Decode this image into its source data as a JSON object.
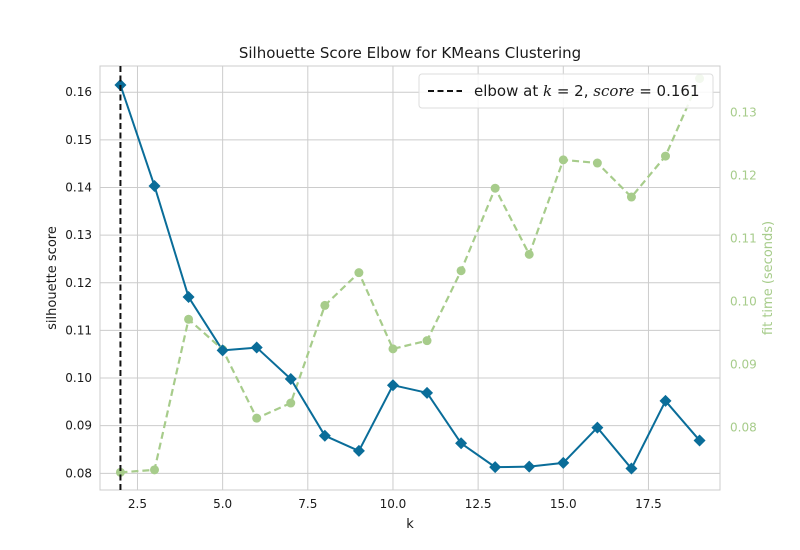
{
  "chart_data": {
    "type": "line",
    "title": "Silhouette Score Elbow for KMeans Clustering",
    "xlabel": "k",
    "ylabel": "silhouette score",
    "y2label": "fit time (seconds)",
    "xlim": [
      1.4,
      19.6
    ],
    "ylim": [
      0.0765,
      0.1655
    ],
    "y2lim": [
      0.0701,
      0.1374
    ],
    "xticks": [
      2.5,
      5.0,
      7.5,
      10.0,
      12.5,
      15.0,
      17.5
    ],
    "xtick_labels": [
      "2.5",
      "5.0",
      "7.5",
      "10.0",
      "12.5",
      "15.0",
      "17.5"
    ],
    "yticks": [
      0.08,
      0.09,
      0.1,
      0.11,
      0.12,
      0.13,
      0.14,
      0.15,
      0.16
    ],
    "ytick_labels": [
      "0.08",
      "0.09",
      "0.10",
      "0.11",
      "0.12",
      "0.13",
      "0.14",
      "0.15",
      "0.16"
    ],
    "y2ticks": [
      0.08,
      0.09,
      0.1,
      0.11,
      0.12,
      0.13
    ],
    "y2tick_labels": [
      "0.08",
      "0.09",
      "0.10",
      "0.11",
      "0.12",
      "0.13"
    ],
    "grid": true,
    "legend_position": "top-right",
    "elbow": {
      "k": 2,
      "score": 0.161,
      "legend_prefix": "elbow at ",
      "legend_k": "k",
      "legend_eq1": " = 2, ",
      "legend_score": "score",
      "legend_eq2": " = 0.161"
    },
    "series": [
      {
        "axis": "left",
        "color": "#0a6d99",
        "marker": "diamond",
        "style": "solid",
        "x": [
          2,
          3,
          4,
          5,
          6,
          7,
          8,
          9,
          10,
          11,
          12,
          13,
          14,
          15,
          16,
          17,
          18,
          19
        ],
        "values": [
          0.1615,
          0.1403,
          0.117,
          0.1058,
          0.1064,
          0.0998,
          0.0879,
          0.0847,
          0.0985,
          0.0969,
          0.0863,
          0.0813,
          0.0814,
          0.0822,
          0.0896,
          0.081,
          0.0952,
          0.0869
        ]
      },
      {
        "axis": "right",
        "color": "#a7cc8b",
        "marker": "circle",
        "style": "dashed",
        "x": [
          2,
          3,
          4,
          5,
          6,
          7,
          8,
          9,
          10,
          11,
          12,
          13,
          14,
          15,
          16,
          17,
          18,
          19
        ],
        "values": [
          0.0729,
          0.0733,
          0.0972,
          0.0924,
          0.0815,
          0.0839,
          0.0994,
          0.1046,
          0.0925,
          0.0938,
          0.1049,
          0.118,
          0.1075,
          0.1225,
          0.122,
          0.1166,
          0.1231,
          0.1354
        ]
      }
    ]
  }
}
